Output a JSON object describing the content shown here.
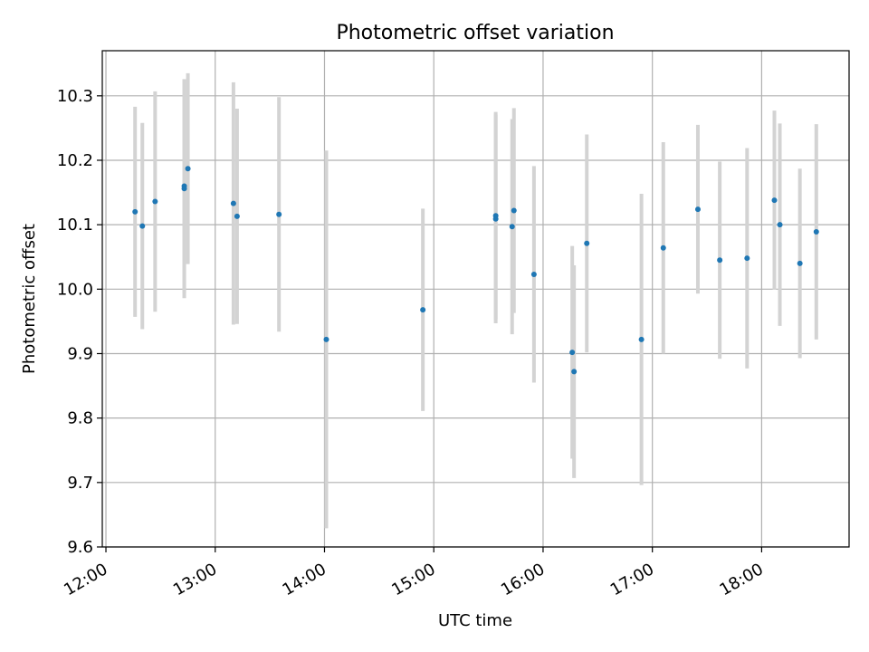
{
  "chart_data": {
    "type": "scatter",
    "title": "Photometric offset variation",
    "xlabel": "UTC time",
    "ylabel": "Photometric offset",
    "xlim": [
      "11:58",
      "18:48"
    ],
    "ylim": [
      9.6,
      10.37
    ],
    "x_ticks": [
      "12:00",
      "13:00",
      "14:00",
      "15:00",
      "16:00",
      "17:00",
      "18:00"
    ],
    "y_ticks": [
      9.6,
      9.7,
      9.8,
      9.9,
      10.0,
      10.1,
      10.2,
      10.3
    ],
    "grid": true,
    "colors": {
      "marker": "#1f77b4",
      "errorbar": "#d3d3d3",
      "grid": "#b0b0b0"
    },
    "points": [
      {
        "x": "12:16",
        "y": 10.12,
        "yerr": 0.163
      },
      {
        "x": "12:20",
        "y": 10.098,
        "yerr": 0.16
      },
      {
        "x": "12:27",
        "y": 10.136,
        "yerr": 0.171
      },
      {
        "x": "12:43",
        "y": 10.16,
        "yerr": 0.165
      },
      {
        "x": "12:43",
        "y": 10.156,
        "yerr": 0.17
      },
      {
        "x": "12:45",
        "y": 10.187,
        "yerr": 0.148
      },
      {
        "x": "13:10",
        "y": 10.133,
        "yerr": 0.188
      },
      {
        "x": "13:12",
        "y": 10.113,
        "yerr": 0.167
      },
      {
        "x": "13:35",
        "y": 10.116,
        "yerr": 0.182
      },
      {
        "x": "14:01",
        "y": 9.922,
        "yerr": 0.293
      },
      {
        "x": "14:54",
        "y": 9.968,
        "yerr": 0.157
      },
      {
        "x": "15:34",
        "y": 10.114,
        "yerr": 0.161
      },
      {
        "x": "15:34",
        "y": 10.109,
        "yerr": 0.162
      },
      {
        "x": "15:43",
        "y": 10.097,
        "yerr": 0.167
      },
      {
        "x": "15:44",
        "y": 10.122,
        "yerr": 0.159
      },
      {
        "x": "15:55",
        "y": 10.023,
        "yerr": 0.168
      },
      {
        "x": "16:16",
        "y": 9.902,
        "yerr": 0.165
      },
      {
        "x": "16:17",
        "y": 9.872,
        "yerr": 0.165
      },
      {
        "x": "16:24",
        "y": 10.071,
        "yerr": 0.169
      },
      {
        "x": "16:54",
        "y": 9.922,
        "yerr": 0.226
      },
      {
        "x": "17:06",
        "y": 10.064,
        "yerr": 0.164
      },
      {
        "x": "17:25",
        "y": 10.124,
        "yerr": 0.131
      },
      {
        "x": "17:37",
        "y": 10.045,
        "yerr": 0.153
      },
      {
        "x": "17:52",
        "y": 10.048,
        "yerr": 0.171
      },
      {
        "x": "18:07",
        "y": 10.138,
        "yerr": 0.139
      },
      {
        "x": "18:10",
        "y": 10.1,
        "yerr": 0.157
      },
      {
        "x": "18:21",
        "y": 10.04,
        "yerr": 0.147
      },
      {
        "x": "18:30",
        "y": 10.089,
        "yerr": 0.167
      }
    ]
  }
}
